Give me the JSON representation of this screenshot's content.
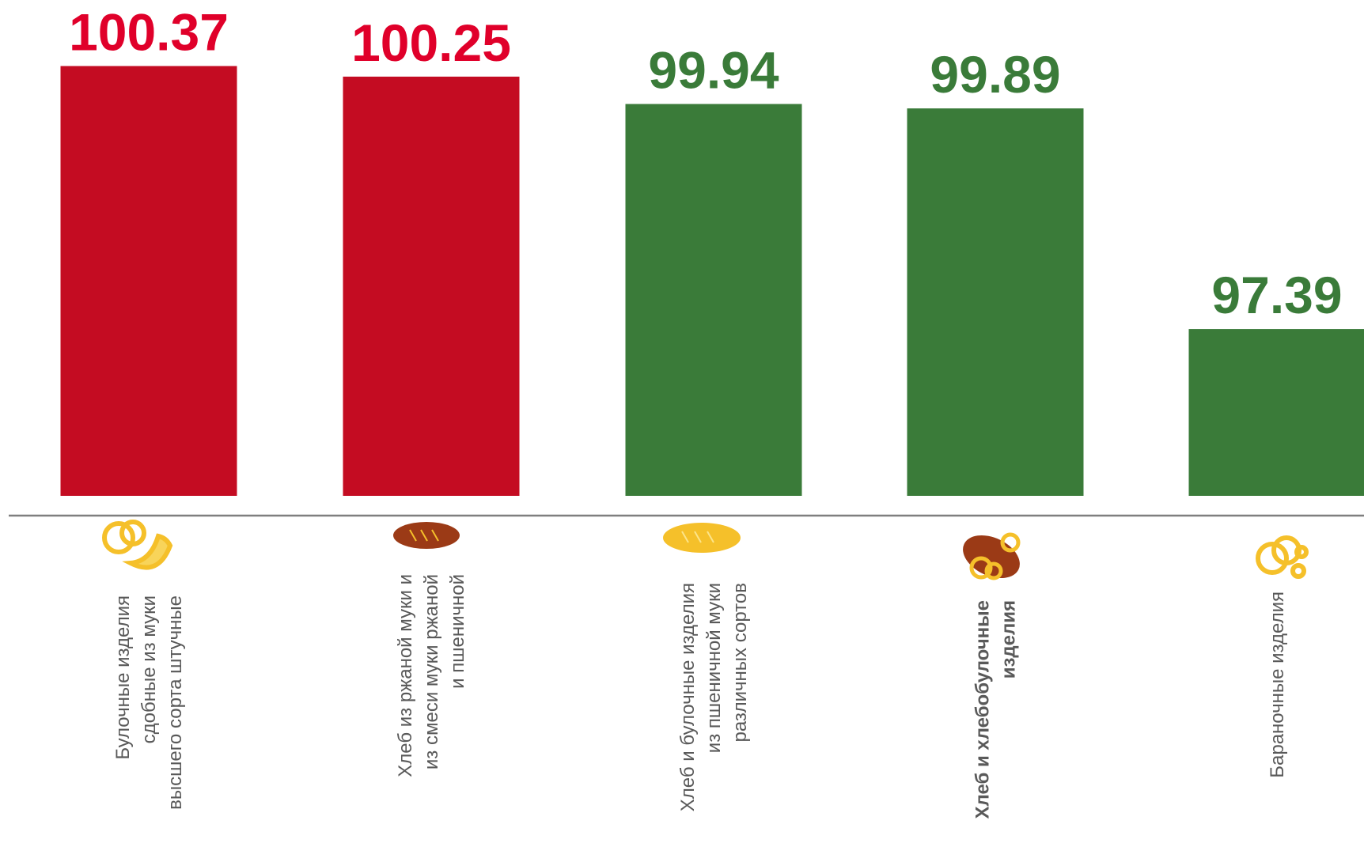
{
  "chart_data": {
    "type": "bar",
    "categories": [
      [
        "Булочные изделия",
        "сдобные из муки",
        "высшего сорта штучные"
      ],
      [
        "Хлеб из ржаной муки и",
        "из смеси муки ржаной",
        "и пшеничной"
      ],
      [
        "Хлеб и булочные изделия",
        "из пшеничной муки",
        "различных сортов"
      ],
      [
        "Хлеб и хлебобулочные",
        "изделия"
      ],
      [
        "Бараночные изделия"
      ]
    ],
    "values": [
      100.37,
      100.25,
      99.94,
      99.89,
      97.39
    ],
    "colors": [
      "#c40c22",
      "#c40c22",
      "#3a7b39",
      "#3a7b39",
      "#3a7b39"
    ],
    "label_colors": [
      "#e0002a",
      "#e0002a",
      "#3a7b39",
      "#3a7b39",
      "#3a7b39"
    ],
    "ylim": [
      95.5,
      100.5
    ]
  }
}
